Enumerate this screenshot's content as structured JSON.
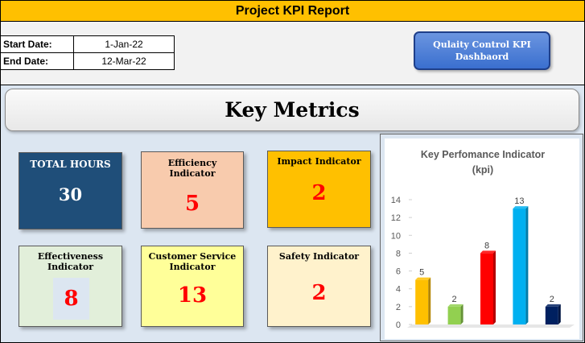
{
  "header": {
    "title": "Project KPI Report"
  },
  "dates": {
    "start_label": "Start Date:",
    "start_value": "1-Jan-22",
    "end_label": "End Date:",
    "end_value": "12-Mar-22"
  },
  "qc_button": {
    "label": "Qulaity  Control KPI Dashbaord"
  },
  "banner": {
    "title": "Key Metrics"
  },
  "cards": [
    {
      "label": "TOTAL HOURS",
      "value": "30",
      "bg": "#1f4e79",
      "label_color": "#ffffff",
      "value_color": "#ffffff"
    },
    {
      "label": "Efficiency Indicator",
      "value": "5",
      "bg": "#f8cbad",
      "label_color": "#000000",
      "value_color": "#ff0000"
    },
    {
      "label": "Impact Indicator",
      "value": "2",
      "bg": "#ffc000",
      "label_color": "#000000",
      "value_color": "#ff0000"
    },
    {
      "label": "Effectiveness Indicator",
      "value": "8",
      "bg": "#e2efda",
      "label_color": "#000000",
      "value_color": "#ff0000"
    },
    {
      "label": "Customer Service Indicator",
      "value": "13",
      "bg": "#ffff99",
      "label_color": "#000000",
      "value_color": "#ff0000"
    },
    {
      "label": "Safety Indicator",
      "value": "2",
      "bg": "#fff2cc",
      "label_color": "#000000",
      "value_color": "#ff0000"
    }
  ],
  "chart_data": {
    "type": "bar",
    "title": "Key Perfomance Indicator",
    "subtitle": "(kpi)",
    "values": [
      5,
      2,
      8,
      13,
      2
    ],
    "colors": [
      "#ffc000",
      "#92d050",
      "#ff0000",
      "#00b0f0",
      "#002060"
    ],
    "ylim": [
      0,
      14
    ],
    "yticks": [
      0,
      2,
      4,
      6,
      8,
      10,
      12,
      14
    ],
    "grid": false,
    "legend": "none"
  }
}
